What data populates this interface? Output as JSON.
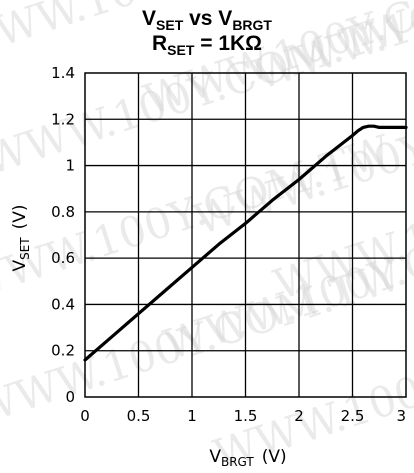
{
  "chart_data": {
    "type": "line",
    "title": {
      "line1": {
        "v1": "V",
        "v1_sub": "SET",
        "mid": " vs ",
        "v2": "V",
        "v2_sub": "BRGT"
      },
      "line2": {
        "r": "R",
        "r_sub": "SET",
        "value": " = 1KΩ"
      }
    },
    "xlabel": {
      "main": "V",
      "sub": "BRGT",
      "unit": "(V)"
    },
    "ylabel": {
      "main": "V",
      "sub": "SET",
      "unit": "(V)"
    },
    "xlim": [
      0,
      3
    ],
    "ylim": [
      0,
      1.4
    ],
    "x_ticks": [
      "0",
      "0.5",
      "1",
      "1.5",
      "2",
      "2.5",
      "3"
    ],
    "y_ticks": [
      "0",
      "0.2",
      "0.4",
      "0.6",
      "0.8",
      "1",
      "1.2",
      "1.4"
    ],
    "grid": true,
    "series": [
      {
        "x": [
          0,
          0.25,
          0.5,
          0.75,
          1.0,
          1.25,
          1.5,
          1.75,
          2.0,
          2.25,
          2.5,
          2.55,
          2.6,
          2.65,
          2.7,
          2.75,
          2.8,
          3.0
        ],
        "y": [
          0.16,
          0.26,
          0.36,
          0.46,
          0.56,
          0.66,
          0.75,
          0.85,
          0.94,
          1.04,
          1.13,
          1.15,
          1.165,
          1.17,
          1.17,
          1.165,
          1.165,
          1.165
        ]
      }
    ],
    "colors": {
      "line": "#000000",
      "grid": "#000000",
      "background": "#ffffff"
    }
  },
  "watermark": "WWW.100Y.COM.TW"
}
